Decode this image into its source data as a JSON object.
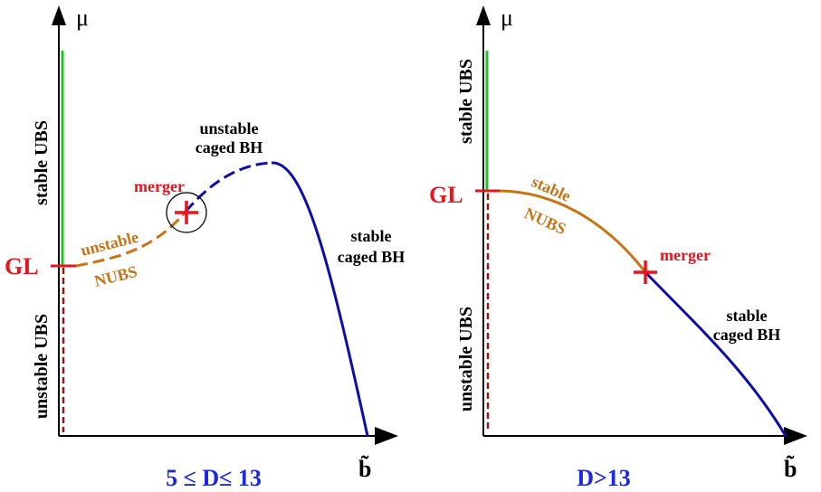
{
  "colors": {
    "axis": "#000000",
    "stable_ubs": "#22c322",
    "unstable_ubs": "#8b1a1a",
    "nubs": "#c87414",
    "caged_bh": "#0b0fa8",
    "gl_merger": "#e8141e",
    "caption": "#1a28e0"
  },
  "left_panel": {
    "y_axis_label": "μ",
    "x_axis_label": "b̃",
    "stable_ubs_label": "stable UBS",
    "unstable_ubs_label": "unstable UBS",
    "gl_label": "GL",
    "merger_label": "merger",
    "nubs_state": "unstable",
    "nubs_name": "NUBS",
    "unstable_bh_line1": "unstable",
    "unstable_bh_line2": "caged BH",
    "stable_bh_line1": "stable",
    "stable_bh_line2": "caged BH",
    "caption": "5 ≤ D≤ 13"
  },
  "right_panel": {
    "y_axis_label": "μ",
    "x_axis_label": "b̃",
    "stable_ubs_label": "stable UBS",
    "unstable_ubs_label": "unstable UBS",
    "gl_label": "GL",
    "merger_label": "merger",
    "nubs_state": "stable",
    "nubs_name": "NUBS",
    "stable_bh_line1": "stable",
    "stable_bh_line2": "caged BH",
    "caption": "D>13"
  }
}
